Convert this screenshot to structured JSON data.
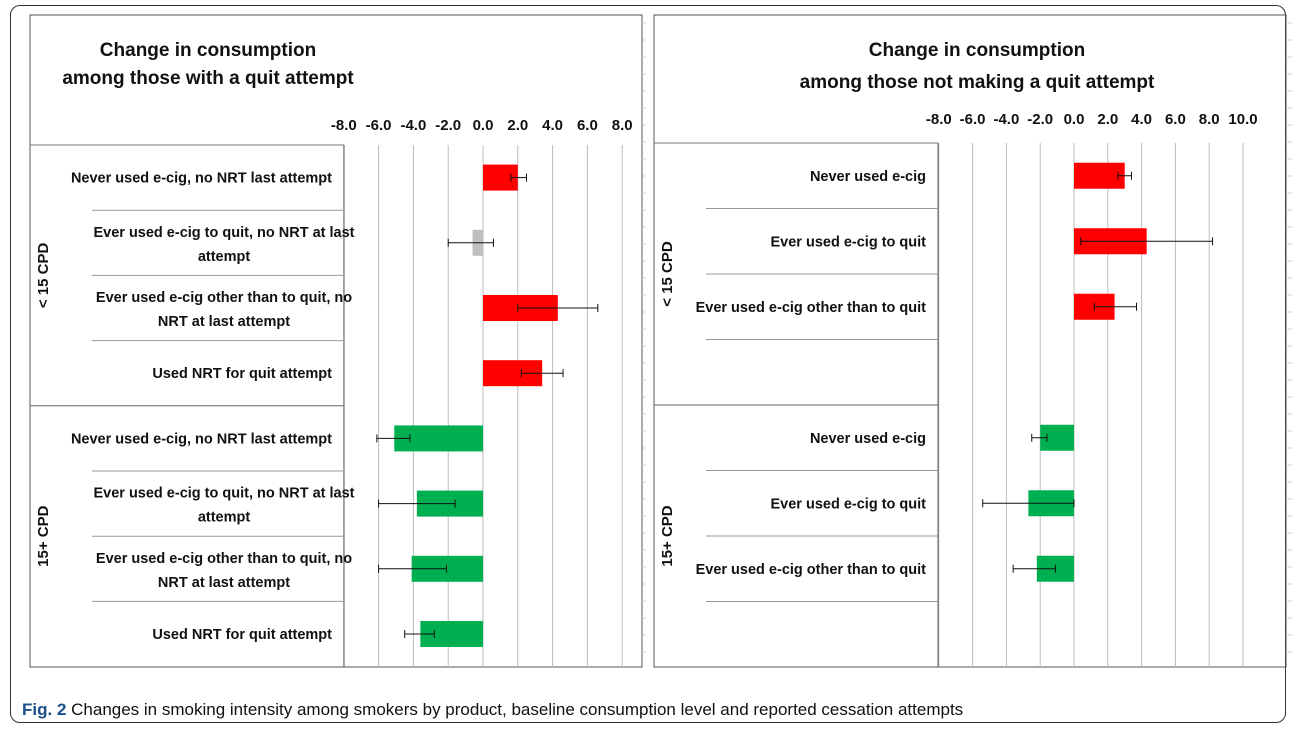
{
  "chart_data": [
    {
      "type": "bar",
      "orientation": "horizontal",
      "title": [
        "Change in consumption",
        "among those with a quit attempt"
      ],
      "xlim": [
        -8,
        8
      ],
      "ticks": [
        "-8.0",
        "-6.0",
        "-4.0",
        "-2.0",
        "0.0",
        "2.0",
        "4.0",
        "6.0",
        "8.0"
      ],
      "grid": true,
      "groups": [
        {
          "label": "< 15 CPD",
          "categories": [
            [
              "Never used e-cig, no NRT last attempt"
            ],
            [
              "Ever used e-cig to quit, no NRT at last",
              "attempt"
            ],
            [
              "Ever used e-cig other than to quit, no",
              "NRT at last attempt"
            ],
            [
              "Used NRT for quit attempt"
            ]
          ],
          "values": [
            2.0,
            -0.6,
            4.3,
            3.4
          ],
          "err_low": [
            1.6,
            -2.0,
            2.0,
            2.2
          ],
          "err_high": [
            2.5,
            0.6,
            6.6,
            4.6
          ],
          "colors": [
            "#ff0000",
            "#bfbfbf",
            "#ff0000",
            "#ff0000"
          ]
        },
        {
          "label": "15+ CPD",
          "categories": [
            [
              "Never used e-cig, no NRT last attempt"
            ],
            [
              "Ever used e-cig to quit, no NRT at last",
              "attempt"
            ],
            [
              "Ever used e-cig other than to quit, no",
              "NRT at last attempt"
            ],
            [
              "Used NRT for quit attempt"
            ]
          ],
          "values": [
            -5.1,
            -3.8,
            -4.1,
            -3.6
          ],
          "err_low": [
            -6.1,
            -6.0,
            -6.0,
            -4.5
          ],
          "err_high": [
            -4.2,
            -1.6,
            -2.1,
            -2.8
          ],
          "colors": [
            "#00b050",
            "#00b050",
            "#00b050",
            "#00b050"
          ]
        }
      ]
    },
    {
      "type": "bar",
      "orientation": "horizontal",
      "title": [
        "Change in consumption",
        "among those not making a quit attempt"
      ],
      "xlim": [
        -8,
        10
      ],
      "ticks": [
        "-8.0",
        "-6.0",
        "-4.0",
        "-2.0",
        "0.0",
        "2.0",
        "4.0",
        "6.0",
        "8.0",
        "10.0"
      ],
      "grid": true,
      "groups": [
        {
          "label": "< 15 CPD",
          "categories": [
            [
              "Never used e-cig"
            ],
            [
              "Ever used e-cig to quit"
            ],
            [
              "Ever used e-cig other than to quit"
            ],
            []
          ],
          "values": [
            3.0,
            4.3,
            2.4,
            null
          ],
          "err_low": [
            2.6,
            0.4,
            1.2,
            null
          ],
          "err_high": [
            3.4,
            8.2,
            3.7,
            null
          ],
          "colors": [
            "#ff0000",
            "#ff0000",
            "#ff0000",
            "#ff0000"
          ]
        },
        {
          "label": "15+ CPD",
          "categories": [
            [
              "Never used e-cig"
            ],
            [
              "Ever used e-cig to quit"
            ],
            [
              "Ever used e-cig other than to quit"
            ],
            []
          ],
          "values": [
            -2.0,
            -2.7,
            -2.2,
            null
          ],
          "err_low": [
            -2.5,
            -5.4,
            -3.6,
            null
          ],
          "err_high": [
            -1.6,
            0.0,
            -1.1,
            null
          ],
          "colors": [
            "#00b050",
            "#00b050",
            "#00b050",
            "#00b050"
          ]
        }
      ]
    }
  ],
  "caption": {
    "label": "Fig. 2",
    "text": " Changes in smoking intensity among smokers by product, baseline consumption level and reported cessation attempts"
  }
}
